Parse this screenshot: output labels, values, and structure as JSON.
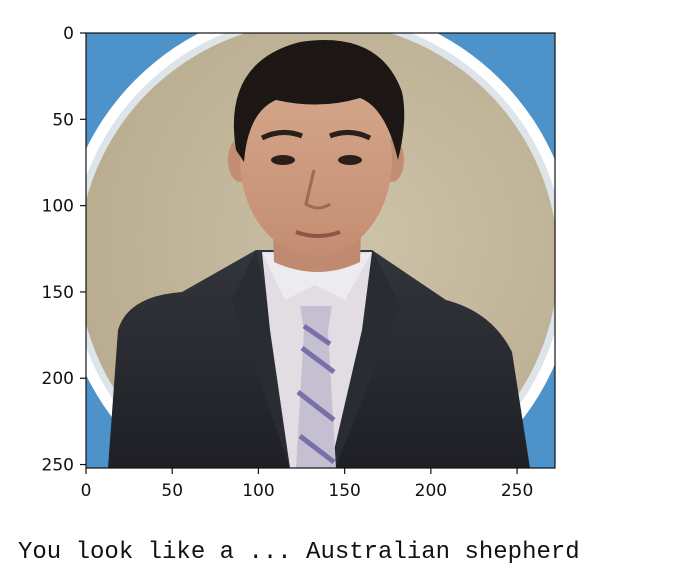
{
  "image_plot": {
    "chart_data": {
      "type": "image",
      "title": "",
      "xlabel": "",
      "ylabel": "",
      "xlim": [
        0,
        272
      ],
      "ylim": [
        0,
        252
      ],
      "y_inverted": true,
      "x_ticks": [
        0,
        50,
        100,
        150,
        200,
        250
      ],
      "y_ticks": [
        0,
        50,
        100,
        150,
        200,
        250
      ],
      "grid": false,
      "content_icon": "portrait-photo"
    }
  },
  "output": {
    "text": "You look like a ... Australian shepherd"
  }
}
